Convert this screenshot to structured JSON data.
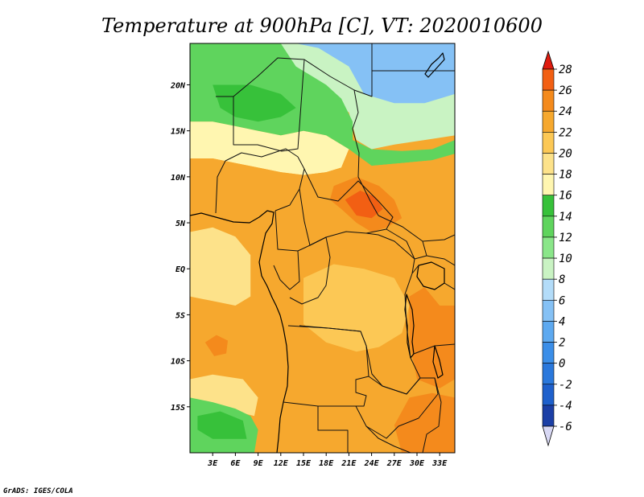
{
  "chart_data": {
    "type": "heatmap",
    "title": "Temperature at 900hPa [C], VT: 2020010600",
    "variable": "Temperature at 900hPa",
    "units": "C",
    "valid_time": "2020010600",
    "x_ticks": [
      {
        "value": 3,
        "label": "3E"
      },
      {
        "value": 6,
        "label": "6E"
      },
      {
        "value": 9,
        "label": "9E"
      },
      {
        "value": 12,
        "label": "12E"
      },
      {
        "value": 15,
        "label": "15E"
      },
      {
        "value": 18,
        "label": "18E"
      },
      {
        "value": 21,
        "label": "21E"
      },
      {
        "value": 24,
        "label": "24E"
      },
      {
        "value": 27,
        "label": "27E"
      },
      {
        "value": 30,
        "label": "30E"
      },
      {
        "value": 33,
        "label": "33E"
      }
    ],
    "y_ticks": [
      {
        "value": 20,
        "label": "20N"
      },
      {
        "value": 15,
        "label": "15N"
      },
      {
        "value": 10,
        "label": "10N"
      },
      {
        "value": 5,
        "label": "5N"
      },
      {
        "value": 0,
        "label": "EQ"
      },
      {
        "value": -5,
        "label": "5S"
      },
      {
        "value": -10,
        "label": "10S"
      },
      {
        "value": -15,
        "label": "15S"
      }
    ],
    "xlim": [
      0,
      35
    ],
    "ylim": [
      -20,
      24.5
    ],
    "colorbar": {
      "levels": [
        -6,
        -4,
        -2,
        0,
        2,
        4,
        6,
        8,
        10,
        12,
        14,
        16,
        18,
        20,
        22,
        24,
        26,
        28
      ],
      "colors": [
        "#15105e",
        "#1b3fa6",
        "#1e60cc",
        "#2a78dc",
        "#3b8ee8",
        "#5da9f0",
        "#85c1f5",
        "#b3dcf9",
        "#c9f3c3",
        "#8ae689",
        "#5fd45d",
        "#37c13a",
        "#fff6b0",
        "#fde28a",
        "#fcc855",
        "#f6a82e",
        "#f48a1c",
        "#f25f13",
        "#df1b0e"
      ],
      "under_color": "#d8d8f4"
    },
    "regions": [
      {
        "name": "far-north-light-blue",
        "value": 5,
        "polygon": [
          [
            12,
            24.5
          ],
          [
            35,
            24.5
          ],
          [
            35,
            19
          ],
          [
            31,
            17.5
          ],
          [
            27,
            16.5
          ],
          [
            24,
            16.5
          ],
          [
            21.5,
            17
          ],
          [
            21,
            19
          ],
          [
            17,
            21
          ],
          [
            14,
            22
          ]
        ]
      },
      {
        "name": "cyan-band",
        "value": 9,
        "polygon": [
          [
            10,
            24.5
          ],
          [
            14,
            24.5
          ],
          [
            17,
            24
          ],
          [
            19,
            23
          ],
          [
            21,
            22
          ],
          [
            23,
            19
          ],
          [
            27,
            18
          ],
          [
            31,
            18
          ],
          [
            35,
            19
          ],
          [
            35,
            14.5
          ],
          [
            31,
            14
          ],
          [
            27,
            13.5
          ],
          [
            24,
            13
          ],
          [
            22,
            14
          ],
          [
            21,
            17
          ],
          [
            19,
            18
          ],
          [
            17,
            19.5
          ],
          [
            14,
            21
          ]
        ]
      },
      {
        "name": "sahel-green",
        "value": 13,
        "polygon": [
          [
            0,
            24.5
          ],
          [
            12,
            24.5
          ],
          [
            14,
            22
          ],
          [
            16,
            21
          ],
          [
            18,
            20
          ],
          [
            20,
            18.5
          ],
          [
            21.5,
            16
          ],
          [
            21.5,
            14
          ],
          [
            24,
            13
          ],
          [
            28,
            12.8
          ],
          [
            32,
            13
          ],
          [
            35,
            14
          ],
          [
            35,
            12.5
          ],
          [
            32,
            11.8
          ],
          [
            28,
            11.5
          ],
          [
            24,
            11.2
          ],
          [
            21,
            13
          ],
          [
            18,
            14.5
          ],
          [
            15,
            15
          ],
          [
            12,
            14.5
          ],
          [
            9,
            15
          ],
          [
            6,
            15.5
          ],
          [
            3,
            16
          ],
          [
            0,
            16
          ]
        ]
      },
      {
        "name": "deep-green-sahel",
        "value": 15,
        "polygon": [
          [
            3,
            20
          ],
          [
            8,
            20
          ],
          [
            12,
            19
          ],
          [
            14,
            17.5
          ],
          [
            12,
            16.5
          ],
          [
            9,
            16
          ],
          [
            6,
            16.5
          ],
          [
            4,
            17.5
          ]
        ]
      },
      {
        "name": "sahel-pale-yellow",
        "value": 17,
        "polygon": [
          [
            0,
            16
          ],
          [
            3,
            16
          ],
          [
            6,
            15.5
          ],
          [
            9,
            15
          ],
          [
            12,
            14.5
          ],
          [
            15,
            15
          ],
          [
            18,
            14.5
          ],
          [
            21,
            13
          ],
          [
            20,
            11
          ],
          [
            18,
            10.5
          ],
          [
            15,
            10.2
          ],
          [
            12,
            10.5
          ],
          [
            9,
            11
          ],
          [
            6,
            11.5
          ],
          [
            3,
            12
          ],
          [
            0,
            12
          ]
        ]
      },
      {
        "name": "west-africa-orange",
        "value": 23,
        "polygon": [
          [
            0,
            12
          ],
          [
            3,
            12
          ],
          [
            6,
            11.5
          ],
          [
            9,
            11
          ],
          [
            12,
            10.5
          ],
          [
            15,
            10.2
          ],
          [
            18,
            10.5
          ],
          [
            20,
            11
          ],
          [
            21,
            13
          ],
          [
            24,
            11.2
          ],
          [
            28,
            11.5
          ],
          [
            32,
            11.8
          ],
          [
            35,
            12.5
          ],
          [
            35,
            -20
          ],
          [
            0,
            -20
          ]
        ]
      },
      {
        "name": "central-africa-dark-orange",
        "value": 25,
        "polygon": [
          [
            19,
            9
          ],
          [
            22,
            10
          ],
          [
            25,
            9
          ],
          [
            27,
            7.5
          ],
          [
            28,
            5.5
          ],
          [
            26,
            4.5
          ],
          [
            24,
            4
          ],
          [
            22,
            5
          ],
          [
            20,
            6.5
          ],
          [
            18.5,
            7.5
          ]
        ]
      },
      {
        "name": "south-sudan-hot",
        "value": 27,
        "polygon": [
          [
            20.5,
            7.5
          ],
          [
            22.5,
            8.5
          ],
          [
            24.5,
            7.8
          ],
          [
            25.5,
            6.5
          ],
          [
            24,
            5.5
          ],
          [
            22,
            5.8
          ]
        ]
      },
      {
        "name": "congo-basin-lighter",
        "value": 21,
        "polygon": [
          [
            15,
            -1
          ],
          [
            19,
            0.5
          ],
          [
            23,
            0
          ],
          [
            27,
            -1
          ],
          [
            29,
            -4
          ],
          [
            28,
            -7
          ],
          [
            25,
            -8.5
          ],
          [
            22,
            -9
          ],
          [
            18,
            -8
          ],
          [
            15,
            -6
          ]
        ]
      },
      {
        "name": "gulf-of-guinea-light",
        "value": 19,
        "polygon": [
          [
            0,
            4
          ],
          [
            3,
            4.5
          ],
          [
            6,
            3.5
          ],
          [
            8,
            1.5
          ],
          [
            8,
            -3
          ],
          [
            6,
            -4
          ],
          [
            3,
            -3.5
          ],
          [
            0,
            -3
          ]
        ]
      },
      {
        "name": "south-atlantic-light",
        "value": 19,
        "polygon": [
          [
            0,
            -12
          ],
          [
            3,
            -11.5
          ],
          [
            7,
            -12
          ],
          [
            9,
            -14
          ],
          [
            8.5,
            -16
          ],
          [
            6,
            -15.5
          ],
          [
            3,
            -15
          ],
          [
            0,
            -15
          ]
        ]
      },
      {
        "name": "angola-hot-spot",
        "value": 25,
        "polygon": [
          [
            2,
            -8
          ],
          [
            3.5,
            -7.2
          ],
          [
            5,
            -7.8
          ],
          [
            4.8,
            -9.2
          ],
          [
            3.2,
            -9.5
          ]
        ]
      },
      {
        "name": "east-africa-dark-orange",
        "value": 25,
        "polygon": [
          [
            29,
            -3
          ],
          [
            31,
            -2
          ],
          [
            33,
            -4
          ],
          [
            35,
            -4
          ],
          [
            35,
            -12
          ],
          [
            33,
            -13
          ],
          [
            30,
            -12
          ],
          [
            29,
            -8
          ]
        ]
      },
      {
        "name": "mozambique-dark",
        "value": 25,
        "polygon": [
          [
            29,
            -14
          ],
          [
            32,
            -13.5
          ],
          [
            35,
            -14
          ],
          [
            35,
            -20
          ],
          [
            28,
            -20
          ],
          [
            27,
            -17
          ]
        ]
      },
      {
        "name": "namibia-green",
        "value": 13,
        "polygon": [
          [
            0,
            -14
          ],
          [
            3,
            -14.5
          ],
          [
            6,
            -15.2
          ],
          [
            8,
            -16
          ],
          [
            9,
            -17.5
          ],
          [
            8.5,
            -20
          ],
          [
            0,
            -20
          ]
        ]
      },
      {
        "name": "namibia-deep-green",
        "value": 15,
        "polygon": [
          [
            1,
            -16
          ],
          [
            4,
            -15.5
          ],
          [
            7,
            -16.5
          ],
          [
            7.5,
            -18.5
          ],
          [
            3,
            -18.5
          ],
          [
            1,
            -17.5
          ]
        ]
      }
    ]
  },
  "footer": {
    "credit": "GrADS: IGES/COLA"
  }
}
